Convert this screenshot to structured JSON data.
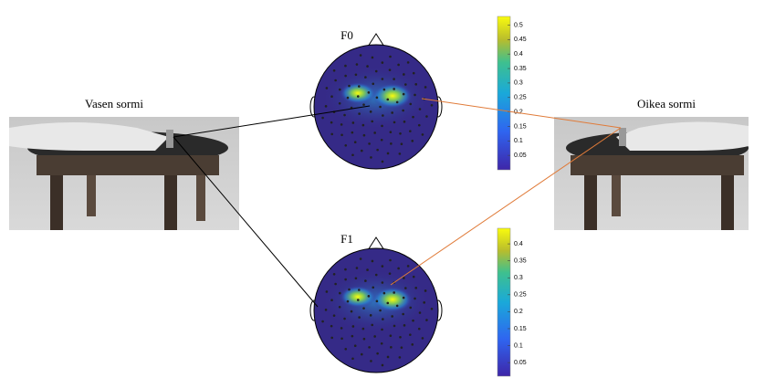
{
  "panels": [
    {
      "label": "F0",
      "colorbar": {
        "lim": [
          0,
          0.53
        ],
        "ticks": [
          0.05,
          0.1,
          0.15,
          0.2,
          0.25,
          0.3,
          0.35,
          0.4,
          0.45,
          0.5
        ]
      }
    },
    {
      "label": "F1",
      "colorbar": {
        "lim": [
          0.01,
          0.446
        ],
        "ticks": [
          0.05,
          0.1,
          0.15,
          0.2,
          0.25,
          0.3,
          0.35,
          0.4
        ]
      }
    }
  ],
  "left_photo": {
    "caption": "Vasen sormi"
  },
  "right_photo": {
    "caption": "Oikea sormi"
  }
}
